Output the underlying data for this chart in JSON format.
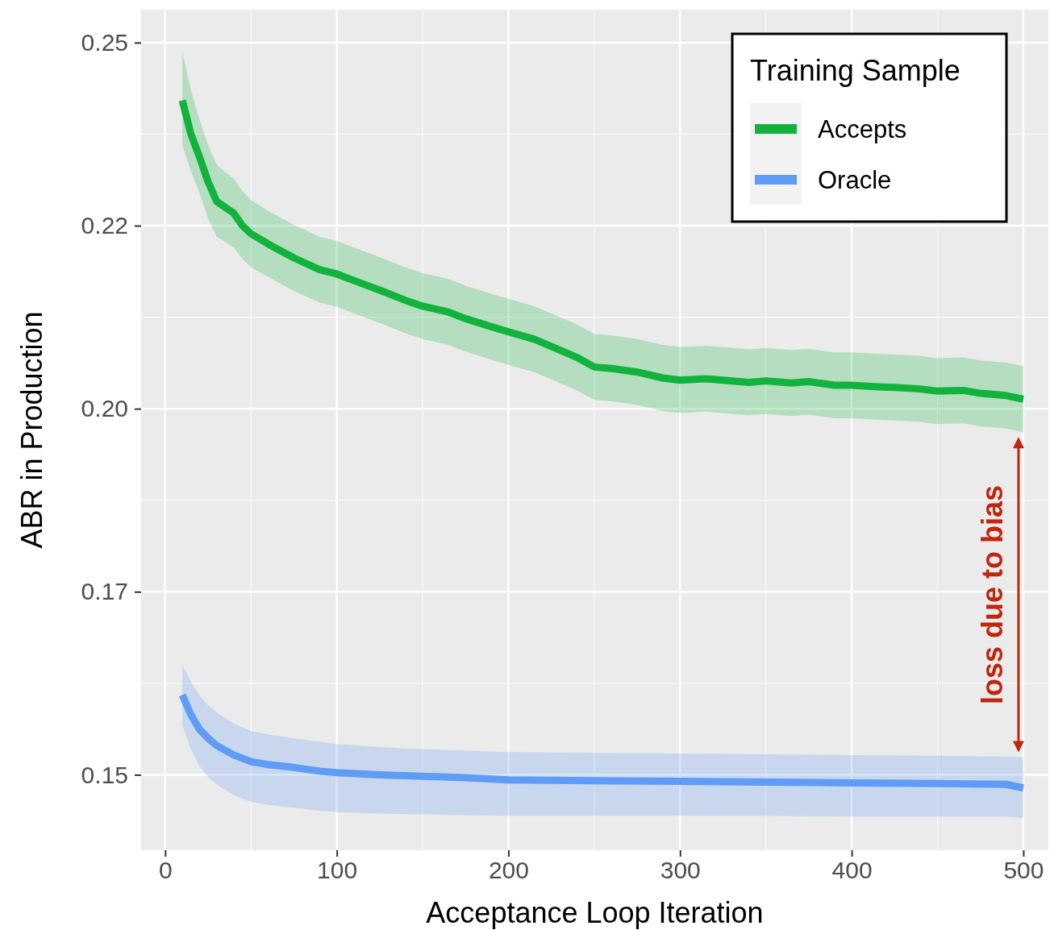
{
  "chart_data": {
    "type": "line",
    "xlabel": "Acceptance Loop Iteration",
    "ylabel": "ABR in Production",
    "legend_title": "Training Sample",
    "legend": "top right",
    "grid": true,
    "marker": "none",
    "line_style": "solid",
    "xlim": [
      -14,
      514.6
    ],
    "xticks": [
      0,
      100,
      200,
      300,
      400,
      500
    ],
    "ylim": [
      0.1397,
      0.2545
    ],
    "yticks": [
      0.15,
      {
        "value": 0.175,
        "label": "0.17"
      },
      {
        "value": 0.2,
        "label": "0.20"
      },
      {
        "value": 0.225,
        "label": "0.22"
      },
      0.25
    ],
    "annotations": [
      "loss due to bias"
    ],
    "series": [
      {
        "name": "Accepts",
        "color": "#12b33c",
        "x": [
          10,
          15,
          20,
          25,
          30,
          35,
          40,
          45,
          50,
          60,
          75,
          90,
          100,
          110,
          125,
          140,
          150,
          165,
          175,
          190,
          200,
          215,
          225,
          240,
          250,
          260,
          275,
          290,
          300,
          315,
          325,
          340,
          350,
          365,
          375,
          390,
          400,
          415,
          425,
          440,
          450,
          465,
          475,
          490,
          500
        ],
        "values": [
          0.2421,
          0.2375,
          0.2344,
          0.231,
          0.2283,
          0.2275,
          0.2267,
          0.225,
          0.2239,
          0.2225,
          0.2206,
          0.219,
          0.2184,
          0.2175,
          0.2162,
          0.2148,
          0.214,
          0.2132,
          0.2123,
          0.2112,
          0.2105,
          0.2095,
          0.2085,
          0.207,
          0.2057,
          0.2055,
          0.205,
          0.2042,
          0.2039,
          0.2041,
          0.2039,
          0.2036,
          0.2038,
          0.2035,
          0.2037,
          0.2032,
          0.2032,
          0.203,
          0.2029,
          0.2027,
          0.2024,
          0.2025,
          0.2021,
          0.2018,
          0.2013
        ],
        "lower": [
          0.236,
          0.2325,
          0.2295,
          0.226,
          0.2235,
          0.2228,
          0.222,
          0.2205,
          0.2193,
          0.218,
          0.2161,
          0.2145,
          0.2139,
          0.213,
          0.2117,
          0.2103,
          0.2095,
          0.2087,
          0.2078,
          0.2067,
          0.206,
          0.205,
          0.204,
          0.2025,
          0.2012,
          0.201,
          0.2005,
          0.1997,
          0.1994,
          0.1996,
          0.1994,
          0.1991,
          0.1993,
          0.199,
          0.1992,
          0.1987,
          0.1987,
          0.1985,
          0.1984,
          0.1982,
          0.1979,
          0.198,
          0.1976,
          0.1973,
          0.1968
        ],
        "upper": [
          0.2487,
          0.2435,
          0.2395,
          0.236,
          0.2333,
          0.2323,
          0.2314,
          0.2297,
          0.2285,
          0.227,
          0.2251,
          0.2235,
          0.2229,
          0.222,
          0.2207,
          0.2193,
          0.2185,
          0.2177,
          0.2168,
          0.2157,
          0.215,
          0.214,
          0.213,
          0.2115,
          0.2102,
          0.21,
          0.2095,
          0.2087,
          0.2084,
          0.2086,
          0.2084,
          0.2081,
          0.2083,
          0.208,
          0.2082,
          0.2077,
          0.2077,
          0.2075,
          0.2074,
          0.2072,
          0.2069,
          0.207,
          0.2066,
          0.2063,
          0.2058
        ]
      },
      {
        "name": "Oracle",
        "color": "#5e9cf5",
        "x": [
          10,
          15,
          20,
          25,
          30,
          40,
          50,
          60,
          75,
          90,
          100,
          125,
          150,
          175,
          200,
          250,
          300,
          350,
          400,
          450,
          490,
          500
        ],
        "values": [
          0.1609,
          0.1582,
          0.1562,
          0.155,
          0.154,
          0.1527,
          0.1518,
          0.1514,
          0.151,
          0.1505,
          0.1503,
          0.15,
          0.1498,
          0.1496,
          0.1493,
          0.1492,
          0.1491,
          0.149,
          0.1489,
          0.1488,
          0.1487,
          0.1482
        ],
        "lower": [
          0.1568,
          0.1535,
          0.1512,
          0.1497,
          0.1487,
          0.1472,
          0.1463,
          0.1459,
          0.1455,
          0.1451,
          0.1449,
          0.1447,
          0.1446,
          0.1445,
          0.1444,
          0.1444,
          0.1444,
          0.1444,
          0.1443,
          0.1443,
          0.1443,
          0.1441
        ],
        "upper": [
          0.165,
          0.1628,
          0.1608,
          0.1595,
          0.1585,
          0.157,
          0.156,
          0.1555,
          0.155,
          0.1545,
          0.1542,
          0.1538,
          0.1535,
          0.1533,
          0.1531,
          0.153,
          0.1529,
          0.1528,
          0.1527,
          0.1526,
          0.1525,
          0.1524
        ]
      }
    ]
  }
}
